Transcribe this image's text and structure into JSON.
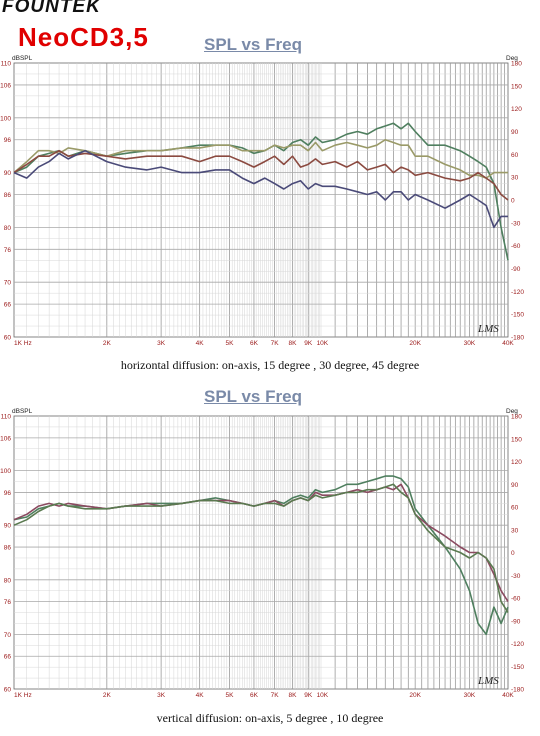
{
  "header": {
    "brand": "FOUNTEK",
    "model": "NeoCD3,5"
  },
  "chart_data": [
    {
      "type": "line",
      "title": "SPL vs Freq",
      "caption": "horizontal diffusion: on-axis, 15 degree , 30 degree, 45 degree",
      "ylabel_left": "dBSPL",
      "ylabel_right": "Deg",
      "watermark": "LMS",
      "x_scale": "log",
      "xlim": [
        1000,
        40000
      ],
      "ylim": [
        60,
        110
      ],
      "ylim_right": [
        -180,
        180
      ],
      "y_ticks": [
        110,
        106,
        100,
        96,
        90,
        86,
        80,
        76,
        70,
        66,
        60
      ],
      "y_ticks_right": [
        180,
        150,
        120,
        90,
        60,
        30,
        0,
        -30,
        -60,
        -90,
        -120,
        -150,
        -180
      ],
      "x_ticks": [
        {
          "f": 1000,
          "label": "1K Hz"
        },
        {
          "f": 2000,
          "label": "2K"
        },
        {
          "f": 3000,
          "label": "3K"
        },
        {
          "f": 4000,
          "label": "4K"
        },
        {
          "f": 5000,
          "label": "5K"
        },
        {
          "f": 6000,
          "label": "6K"
        },
        {
          "f": 7000,
          "label": "7K"
        },
        {
          "f": 8000,
          "label": "8K"
        },
        {
          "f": 9000,
          "label": "9K"
        },
        {
          "f": 10000,
          "label": "10K"
        },
        {
          "f": 20000,
          "label": "20K"
        },
        {
          "f": 30000,
          "label": "30K"
        },
        {
          "f": 40000,
          "label": "40K"
        }
      ],
      "grid": true,
      "series": [
        {
          "color": "#4f7f5f",
          "x": [
            1000,
            1100,
            1200,
            1300,
            1400,
            1500,
            1700,
            2000,
            2300,
            2700,
            3000,
            3500,
            4000,
            4500,
            5000,
            5500,
            6000,
            6500,
            7000,
            7500,
            8000,
            8500,
            9000,
            9500,
            10000,
            11000,
            12000,
            13000,
            14000,
            15000,
            16000,
            17000,
            18000,
            19000,
            20000,
            22000,
            25000,
            28000,
            30000,
            32000,
            34000,
            36000,
            38000,
            40000
          ],
          "y": [
            90,
            91,
            93,
            93.5,
            94,
            93,
            94,
            93,
            93.5,
            94,
            94,
            94.5,
            95,
            95,
            95,
            94.5,
            93.5,
            94,
            95,
            94,
            95.5,
            96,
            95,
            96.5,
            95.5,
            96,
            97,
            97.5,
            97,
            98,
            98.5,
            99,
            98,
            99,
            97.5,
            95,
            95,
            94,
            93,
            92,
            91,
            88,
            80,
            74
          ]
        },
        {
          "color": "#9a9a68",
          "x": [
            1000,
            1100,
            1200,
            1300,
            1400,
            1500,
            1700,
            2000,
            2300,
            2700,
            3000,
            3500,
            4000,
            4500,
            5000,
            5500,
            6000,
            6500,
            7000,
            7500,
            8000,
            8500,
            9000,
            9500,
            10000,
            11000,
            12000,
            13000,
            14000,
            15000,
            16000,
            17000,
            18000,
            19000,
            20000,
            22000,
            25000,
            28000,
            30000,
            32000,
            34000,
            36000,
            38000,
            40000
          ],
          "y": [
            90,
            92,
            94,
            94,
            93.5,
            94.5,
            94,
            93,
            94,
            94,
            94,
            94.5,
            94.5,
            95,
            95,
            94,
            94,
            94,
            95,
            94.5,
            95,
            95,
            94,
            95.5,
            94,
            95,
            95.5,
            95,
            94.5,
            95,
            96,
            95.5,
            95,
            95,
            93,
            93,
            91.5,
            90.5,
            89.5,
            89.5,
            89,
            90,
            90,
            90
          ]
        },
        {
          "color": "#8b4a40",
          "x": [
            1000,
            1100,
            1200,
            1300,
            1400,
            1500,
            1700,
            2000,
            2300,
            2700,
            3000,
            3500,
            4000,
            4500,
            5000,
            5500,
            6000,
            6500,
            7000,
            7500,
            8000,
            8500,
            9000,
            9500,
            10000,
            11000,
            12000,
            13000,
            14000,
            15000,
            16000,
            17000,
            18000,
            19000,
            20000,
            22000,
            25000,
            28000,
            30000,
            32000,
            34000,
            36000,
            38000,
            40000
          ],
          "y": [
            90,
            91.5,
            93,
            93,
            94,
            93,
            93.5,
            93,
            92.5,
            93,
            93,
            93,
            92,
            93,
            93,
            92,
            91,
            92,
            93,
            91.5,
            93,
            91,
            91.5,
            92.5,
            91.5,
            92,
            91,
            92,
            90.5,
            91,
            91.5,
            90,
            91,
            90.5,
            89.5,
            90,
            89,
            88.5,
            89,
            90,
            89,
            88,
            86,
            85
          ]
        },
        {
          "color": "#4a4a78",
          "x": [
            1000,
            1100,
            1200,
            1300,
            1400,
            1500,
            1700,
            2000,
            2300,
            2700,
            3000,
            3500,
            4000,
            4500,
            5000,
            5500,
            6000,
            6500,
            7000,
            7500,
            8000,
            8500,
            9000,
            9500,
            10000,
            11000,
            12000,
            13000,
            14000,
            15000,
            16000,
            17000,
            18000,
            19000,
            20000,
            22000,
            25000,
            28000,
            30000,
            32000,
            34000,
            36000,
            38000,
            40000
          ],
          "y": [
            90,
            89,
            91,
            92,
            93.5,
            92.5,
            94,
            92,
            91,
            90.5,
            91,
            90,
            90,
            90.5,
            90.5,
            89,
            88,
            89,
            88,
            87,
            88,
            88.5,
            87,
            88,
            87.5,
            87.5,
            87,
            86.5,
            86,
            86.5,
            85,
            86.5,
            86.5,
            85,
            86,
            85,
            83.5,
            85,
            86,
            85,
            84,
            80,
            82,
            82
          ]
        }
      ]
    },
    {
      "type": "line",
      "title": "SPL vs Freq",
      "caption": "vertical diffusion: on-axis, 5 degree , 10 degree",
      "ylabel_left": "dBSPL",
      "ylabel_right": "Deg",
      "watermark": "LMS",
      "x_scale": "log",
      "xlim": [
        1000,
        40000
      ],
      "ylim": [
        60,
        110
      ],
      "ylim_right": [
        -180,
        180
      ],
      "y_ticks": [
        110,
        106,
        100,
        96,
        90,
        86,
        80,
        76,
        70,
        66,
        60
      ],
      "y_ticks_right": [
        180,
        150,
        120,
        90,
        60,
        30,
        0,
        -30,
        -60,
        -90,
        -120,
        -150,
        -180
      ],
      "x_ticks": [
        {
          "f": 1000,
          "label": "1K Hz"
        },
        {
          "f": 2000,
          "label": "2K"
        },
        {
          "f": 3000,
          "label": "3K"
        },
        {
          "f": 4000,
          "label": "4K"
        },
        {
          "f": 5000,
          "label": "5K"
        },
        {
          "f": 6000,
          "label": "6K"
        },
        {
          "f": 7000,
          "label": "7K"
        },
        {
          "f": 8000,
          "label": "8K"
        },
        {
          "f": 9000,
          "label": "9K"
        },
        {
          "f": 10000,
          "label": "10K"
        },
        {
          "f": 20000,
          "label": "20K"
        },
        {
          "f": 30000,
          "label": "30K"
        },
        {
          "f": 40000,
          "label": "40K"
        }
      ],
      "grid": true,
      "series": [
        {
          "color": "#4f7f5f",
          "x": [
            1000,
            1100,
            1200,
            1300,
            1400,
            1500,
            1700,
            2000,
            2300,
            2700,
            3000,
            3500,
            4000,
            4500,
            5000,
            5500,
            6000,
            6500,
            7000,
            7500,
            8000,
            8500,
            9000,
            9500,
            10000,
            11000,
            12000,
            13000,
            14000,
            15000,
            16000,
            17000,
            18000,
            19000,
            20000,
            22000,
            25000,
            28000,
            30000,
            32000,
            34000,
            36000,
            38000,
            40000
          ],
          "y": [
            91,
            91.5,
            93,
            93.5,
            94,
            93.5,
            93.5,
            93,
            93.5,
            94,
            94,
            94,
            94.5,
            95,
            94.5,
            94,
            93.5,
            94,
            94.5,
            94,
            95,
            95.5,
            95,
            96.5,
            96,
            96.5,
            97.5,
            97.5,
            98,
            98.5,
            99,
            99,
            98.5,
            97,
            93,
            90,
            86,
            82,
            78,
            72,
            70,
            75,
            72,
            75
          ]
        },
        {
          "color": "#8b4a60",
          "x": [
            1000,
            1100,
            1200,
            1300,
            1400,
            1500,
            1700,
            2000,
            2300,
            2700,
            3000,
            3500,
            4000,
            4500,
            5000,
            5500,
            6000,
            6500,
            7000,
            7500,
            8000,
            8500,
            9000,
            9500,
            10000,
            11000,
            12000,
            13000,
            14000,
            15000,
            16000,
            17000,
            18000,
            19000,
            20000,
            22000,
            25000,
            28000,
            30000,
            32000,
            34000,
            36000,
            38000,
            40000
          ],
          "y": [
            91,
            92,
            93.5,
            94,
            93.5,
            94,
            93.5,
            93,
            93.5,
            94,
            93.5,
            94,
            94.5,
            94.5,
            94.5,
            94,
            93.5,
            94,
            94.5,
            93.5,
            94.5,
            95,
            94.5,
            96,
            95.5,
            95.5,
            96,
            96.5,
            96,
            96.5,
            97,
            96.5,
            97.5,
            95,
            92,
            90,
            88,
            86,
            85,
            85,
            84,
            81,
            78,
            76
          ]
        },
        {
          "color": "#5a7a50",
          "x": [
            1000,
            1100,
            1200,
            1300,
            1400,
            1500,
            1700,
            2000,
            2300,
            2700,
            3000,
            3500,
            4000,
            4500,
            5000,
            5500,
            6000,
            6500,
            7000,
            7500,
            8000,
            8500,
            9000,
            9500,
            10000,
            11000,
            12000,
            13000,
            14000,
            15000,
            16000,
            17000,
            18000,
            19000,
            20000,
            22000,
            25000,
            28000,
            30000,
            32000,
            34000,
            36000,
            38000,
            40000
          ],
          "y": [
            90,
            91,
            92.5,
            93.5,
            94,
            93.5,
            93,
            93,
            93.5,
            93.5,
            93.5,
            94,
            94.5,
            94.5,
            94,
            94,
            93.5,
            94,
            94,
            93.5,
            94.5,
            95,
            94.5,
            95.5,
            95,
            95.5,
            96,
            96,
            96.5,
            96.5,
            97,
            97.5,
            96,
            95,
            92,
            89,
            86,
            85,
            84,
            85,
            84,
            82,
            76,
            74
          ]
        }
      ]
    }
  ]
}
